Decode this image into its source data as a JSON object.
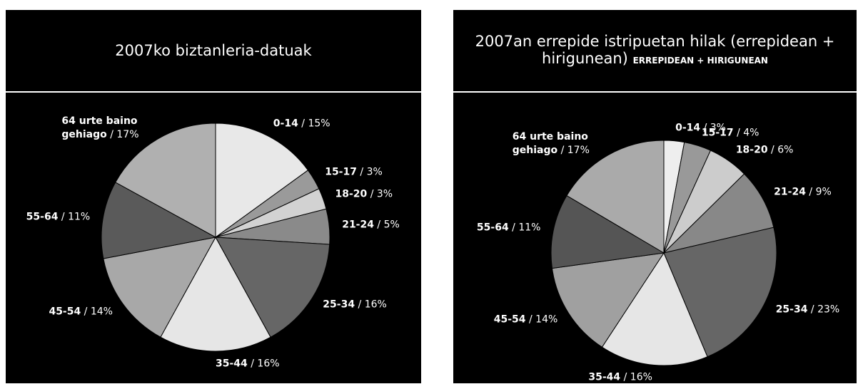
{
  "chart_data": [
    {
      "type": "pie",
      "title": "2007ko biztanleria-datuak",
      "label_separator": " / ",
      "categories": [
        "0-14",
        "15-17",
        "18-20",
        "21-24",
        "25-34",
        "35-44",
        "45-54",
        "55-64",
        "64 urte baino gehiago"
      ],
      "values": [
        15,
        3,
        3,
        5,
        16,
        16,
        14,
        11,
        17
      ],
      "value_labels": [
        "15%",
        "3%",
        "3%",
        "5%",
        "16%",
        "16%",
        "14%",
        "11%",
        "17%"
      ],
      "colors": [
        "#e8e8e8",
        "#9a9a9a",
        "#d2d2d2",
        "#8a8a8a",
        "#666666",
        "#e6e6e6",
        "#a8a8a8",
        "#5a5a5a",
        "#b0b0b0"
      ]
    },
    {
      "type": "pie",
      "title": "2007an errepide istripuetan hilak (errepidean + hirigunean)",
      "subtitle": "ERREPIDEAN + HIRIGUNEAN",
      "label_separator": " / ",
      "categories": [
        "0-14",
        "15-17",
        "18-20",
        "21-24",
        "25-34",
        "35-44",
        "45-54",
        "55-64",
        "64 urte baino gehiago"
      ],
      "values": [
        3,
        4,
        6,
        9,
        23,
        16,
        14,
        11,
        17
      ],
      "value_labels": [
        "3%",
        "4%",
        "6%",
        "9%",
        "23%",
        "16%",
        "14%",
        "11%",
        "17%"
      ],
      "colors": [
        "#eeeeee",
        "#999999",
        "#cccccc",
        "#888888",
        "#666666",
        "#e6e6e6",
        "#a0a0a0",
        "#555555",
        "#aaaaaa"
      ]
    }
  ]
}
